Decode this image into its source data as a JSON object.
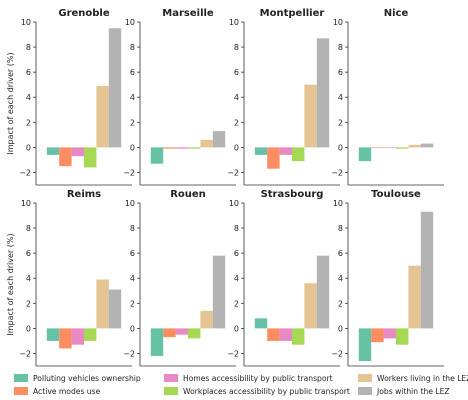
{
  "chart_data": {
    "type": "bar",
    "ylabel": "Impact of each driver (%)",
    "ylim": [
      -3,
      10
    ],
    "yticks": [
      -2,
      0,
      2,
      4,
      6,
      8,
      10
    ],
    "grid": false,
    "legend_position": "bottom",
    "series": [
      {
        "name": "Polluting vehicles ownership",
        "color": "#66c2a5"
      },
      {
        "name": "Active modes use",
        "color": "#fc8d62"
      },
      {
        "name": "Homes accessibility by public transport",
        "color": "#e78ac3"
      },
      {
        "name": "Workplaces accessibility by public transport",
        "color": "#a6d854"
      },
      {
        "name": "Workers living in the LEZ",
        "color": "#e5c494"
      },
      {
        "name": "Jobs within the LEZ",
        "color": "#b3b3b3"
      }
    ],
    "panels": [
      {
        "title": "Grenoble",
        "values": [
          -0.6,
          -1.5,
          -0.7,
          -1.6,
          4.9,
          9.5
        ]
      },
      {
        "title": "Marseille",
        "values": [
          -1.3,
          -0.1,
          -0.1,
          -0.1,
          0.6,
          1.3
        ]
      },
      {
        "title": "Montpellier",
        "values": [
          -0.6,
          -1.7,
          -0.6,
          -1.1,
          5.0,
          8.7
        ]
      },
      {
        "title": "Nice",
        "values": [
          -1.1,
          0.0,
          0.0,
          -0.1,
          0.2,
          0.3
        ]
      },
      {
        "title": "Reims",
        "values": [
          -1.0,
          -1.6,
          -1.3,
          -1.0,
          3.9,
          3.1
        ]
      },
      {
        "title": "Rouen",
        "values": [
          -2.2,
          -0.7,
          -0.5,
          -0.8,
          1.4,
          5.8
        ]
      },
      {
        "title": "Strasbourg",
        "values": [
          0.8,
          -1.0,
          -1.0,
          -1.3,
          3.6,
          5.8
        ]
      },
      {
        "title": "Toulouse",
        "values": [
          -2.6,
          -1.1,
          -0.8,
          -1.3,
          5.0,
          9.3
        ]
      }
    ]
  }
}
